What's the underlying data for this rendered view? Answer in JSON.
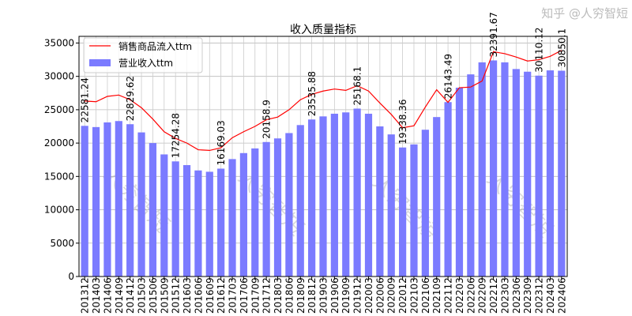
{
  "chart_data": {
    "type": "bar",
    "title": "收入质量指标",
    "xlabel": "",
    "ylabel": "",
    "ylim": [
      0,
      36000
    ],
    "yticks": [
      0,
      5000,
      10000,
      15000,
      20000,
      25000,
      30000,
      35000
    ],
    "grid": true,
    "legend_position": "top-left",
    "categories": [
      "201312",
      "201403",
      "201406",
      "201409",
      "201412",
      "201503",
      "201506",
      "201509",
      "201512",
      "201603",
      "201606",
      "201609",
      "201612",
      "201703",
      "201706",
      "201709",
      "201712",
      "201803",
      "201806",
      "201809",
      "201812",
      "201903",
      "201906",
      "201909",
      "201912",
      "202003",
      "202006",
      "202009",
      "202012",
      "202103",
      "202106",
      "202109",
      "202112",
      "202203",
      "202206",
      "202209",
      "202212",
      "202303",
      "202306",
      "202309",
      "202312",
      "202403",
      "202406"
    ],
    "series": [
      {
        "name": "销售商品流入ttm",
        "type": "line",
        "color": "#ff0000",
        "values": [
          26300,
          26200,
          27000,
          27200,
          26500,
          25300,
          23600,
          21700,
          20700,
          20000,
          19000,
          18900,
          19300,
          20800,
          21700,
          22500,
          23500,
          23900,
          25000,
          26500,
          27300,
          27800,
          28100,
          27900,
          28600,
          27800,
          26000,
          24300,
          22300,
          22600,
          25400,
          28000,
          26100,
          28300,
          28400,
          29300,
          33700,
          33400,
          32900,
          32300,
          32500,
          33000,
          33900
        ]
      },
      {
        "name": "营业收入ttm",
        "type": "bar",
        "color": "#7b7bff",
        "values": [
          22581.24,
          22400,
          23100,
          23300,
          22829.62,
          21600,
          20000,
          18300,
          17254.28,
          16700,
          15900,
          15700,
          16169.03,
          17600,
          18500,
          19200,
          20158.9,
          20700,
          21500,
          22700,
          23535.88,
          24000,
          24400,
          24600,
          25168.1,
          24400,
          22500,
          21300,
          19338.36,
          19800,
          22000,
          23900,
          26143.49,
          28300,
          30300,
          32100,
          32391.67,
          32100,
          31100,
          30700,
          30110.12,
          30900,
          30850.1
        ]
      }
    ],
    "annotations": [
      {
        "category": "201312",
        "text": "22581.24"
      },
      {
        "category": "201412",
        "text": "22829.62"
      },
      {
        "category": "201512",
        "text": "17254.28"
      },
      {
        "category": "201612",
        "text": "16169.03"
      },
      {
        "category": "201712",
        "text": "20158.9"
      },
      {
        "category": "201812",
        "text": "23535.88"
      },
      {
        "category": "201912",
        "text": "25168.1"
      },
      {
        "category": "202012",
        "text": "19338.36"
      },
      {
        "category": "202112",
        "text": "26143.49"
      },
      {
        "category": "202212",
        "text": "32391.67"
      },
      {
        "category": "202312",
        "text": "30110.12"
      },
      {
        "category": "202406",
        "text": "30850.1"
      }
    ],
    "watermark": "人穷智短",
    "credit": "知乎 @人穷智短"
  }
}
